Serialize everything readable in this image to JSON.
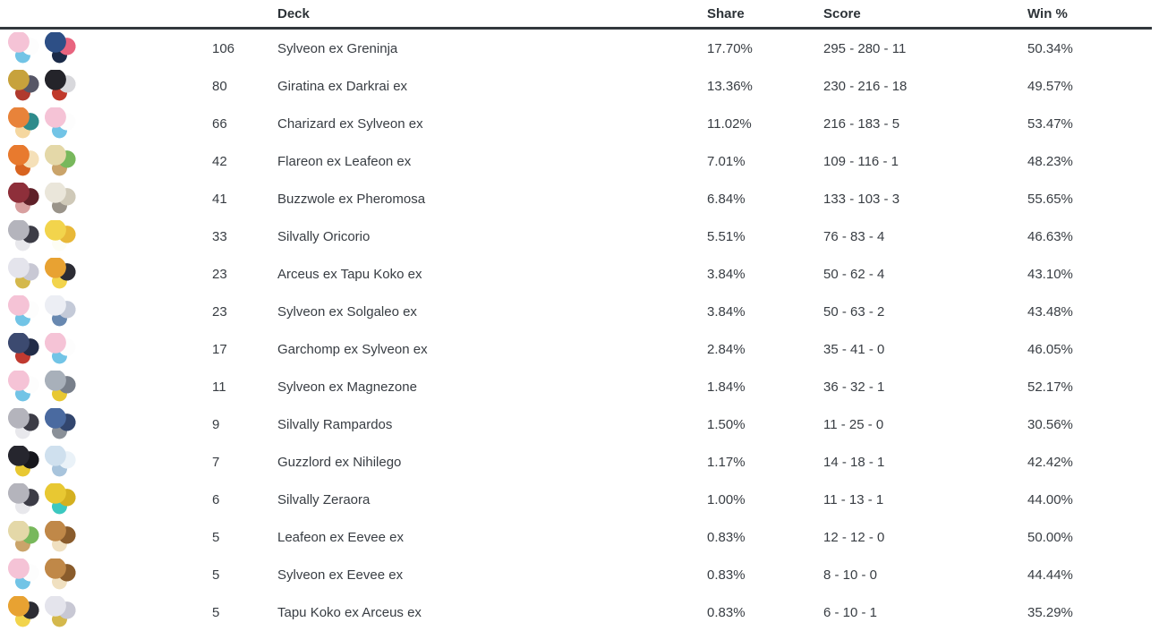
{
  "table": {
    "columns": {
      "deck": "Deck",
      "share": "Share",
      "score": "Score",
      "win": "Win %"
    },
    "rows": [
      {
        "count": "106",
        "deck": "Sylveon ex Greninja",
        "share": "17.70%",
        "score": "295 - 280 - 11",
        "win": "50.34%",
        "sprites": [
          {
            "name": "sylveon",
            "colors": [
              "#f5c3d6",
              "#fdfdfd",
              "#72c4e6"
            ]
          },
          {
            "name": "greninja",
            "colors": [
              "#2d4f86",
              "#e8647f",
              "#1a2a48"
            ]
          }
        ]
      },
      {
        "count": "80",
        "deck": "Giratina ex Darkrai ex",
        "share": "13.36%",
        "score": "230 - 216 - 18",
        "win": "49.57%",
        "sprites": [
          {
            "name": "giratina",
            "colors": [
              "#c7a23c",
              "#565666",
              "#b03a2e"
            ]
          },
          {
            "name": "darkrai",
            "colors": [
              "#24242a",
              "#d8d8dc",
              "#c0392b"
            ]
          }
        ]
      },
      {
        "count": "66",
        "deck": "Charizard ex Sylveon ex",
        "share": "11.02%",
        "score": "216 - 183 - 5",
        "win": "53.47%",
        "sprites": [
          {
            "name": "charizard",
            "colors": [
              "#e8833a",
              "#2e8b8b",
              "#f5d7a0"
            ]
          },
          {
            "name": "sylveon",
            "colors": [
              "#f5c3d6",
              "#fdfdfd",
              "#72c4e6"
            ]
          }
        ]
      },
      {
        "count": "42",
        "deck": "Flareon ex Leafeon ex",
        "share": "7.01%",
        "score": "109 - 116 - 1",
        "win": "48.23%",
        "sprites": [
          {
            "name": "flareon",
            "colors": [
              "#e87a2e",
              "#f5e0b8",
              "#d86420"
            ]
          },
          {
            "name": "leafeon",
            "colors": [
              "#e4d8a8",
              "#78b85c",
              "#caa46a"
            ]
          }
        ]
      },
      {
        "count": "41",
        "deck": "Buzzwole ex Pheromosa",
        "share": "6.84%",
        "score": "133 - 103 - 3",
        "win": "55.65%",
        "sprites": [
          {
            "name": "buzzwole",
            "colors": [
              "#8e2f3a",
              "#5f2028",
              "#d8a0a0"
            ]
          },
          {
            "name": "pheromosa",
            "colors": [
              "#eae6da",
              "#cfc9b8",
              "#9a948a"
            ]
          }
        ]
      },
      {
        "count": "33",
        "deck": "Silvally Oricorio",
        "share": "5.51%",
        "score": "76 - 83 - 4",
        "win": "46.63%",
        "sprites": [
          {
            "name": "silvally",
            "colors": [
              "#b4b4bc",
              "#3c3c46",
              "#e8e8ec"
            ]
          },
          {
            "name": "oricorio",
            "colors": [
              "#f2d44c",
              "#e8b838",
              "#fdfdf4"
            ]
          }
        ]
      },
      {
        "count": "23",
        "deck": "Arceus ex Tapu Koko ex",
        "share": "3.84%",
        "score": "50 - 62 - 4",
        "win": "43.10%",
        "sprites": [
          {
            "name": "arceus",
            "colors": [
              "#e4e4ec",
              "#c8c8d4",
              "#d4b84c"
            ]
          },
          {
            "name": "tapu-koko",
            "colors": [
              "#e8a232",
              "#2c2c34",
              "#f2d44c"
            ]
          }
        ]
      },
      {
        "count": "23",
        "deck": "Sylveon ex Solgaleo ex",
        "share": "3.84%",
        "score": "50 - 63 - 2",
        "win": "43.48%",
        "sprites": [
          {
            "name": "sylveon",
            "colors": [
              "#f5c3d6",
              "#fdfdfd",
              "#72c4e6"
            ]
          },
          {
            "name": "solgaleo",
            "colors": [
              "#eceef4",
              "#c4cad8",
              "#6888b0"
            ]
          }
        ]
      },
      {
        "count": "17",
        "deck": "Garchomp ex Sylveon ex",
        "share": "2.84%",
        "score": "35 - 41 - 0",
        "win": "46.05%",
        "sprites": [
          {
            "name": "garchomp",
            "colors": [
              "#3c4a70",
              "#222c48",
              "#c03a30"
            ]
          },
          {
            "name": "sylveon",
            "colors": [
              "#f5c3d6",
              "#fdfdfd",
              "#72c4e6"
            ]
          }
        ]
      },
      {
        "count": "11",
        "deck": "Sylveon ex Magnezone",
        "share": "1.84%",
        "score": "36 - 32 - 1",
        "win": "52.17%",
        "sprites": [
          {
            "name": "sylveon",
            "colors": [
              "#f5c3d6",
              "#fdfdfd",
              "#72c4e6"
            ]
          },
          {
            "name": "magnezone",
            "colors": [
              "#a8b0ba",
              "#787f8a",
              "#e8c832"
            ]
          }
        ]
      },
      {
        "count": "9",
        "deck": "Silvally Rampardos",
        "share": "1.50%",
        "score": "11 - 25 - 0",
        "win": "30.56%",
        "sprites": [
          {
            "name": "silvally",
            "colors": [
              "#b4b4bc",
              "#3c3c46",
              "#e8e8ec"
            ]
          },
          {
            "name": "rampardos",
            "colors": [
              "#4a6aa0",
              "#32466e",
              "#8a9098"
            ]
          }
        ]
      },
      {
        "count": "7",
        "deck": "Guzzlord ex Nihilego",
        "share": "1.17%",
        "score": "14 - 18 - 1",
        "win": "42.42%",
        "sprites": [
          {
            "name": "guzzlord",
            "colors": [
              "#26262e",
              "#16161c",
              "#e8c832"
            ]
          },
          {
            "name": "nihilego",
            "colors": [
              "#cfe0ee",
              "#eaf2f8",
              "#a8c4dc"
            ]
          }
        ]
      },
      {
        "count": "6",
        "deck": "Silvally Zeraora",
        "share": "1.00%",
        "score": "11 - 13 - 1",
        "win": "44.00%",
        "sprites": [
          {
            "name": "silvally",
            "colors": [
              "#b4b4bc",
              "#3c3c46",
              "#e8e8ec"
            ]
          },
          {
            "name": "zeraora",
            "colors": [
              "#e8c832",
              "#d4b020",
              "#3cc8c0"
            ]
          }
        ]
      },
      {
        "count": "5",
        "deck": "Leafeon ex Eevee ex",
        "share": "0.83%",
        "score": "12 - 12 - 0",
        "win": "50.00%",
        "sprites": [
          {
            "name": "leafeon",
            "colors": [
              "#e4d8a8",
              "#78b85c",
              "#caa46a"
            ]
          },
          {
            "name": "eevee",
            "colors": [
              "#c08848",
              "#8a5c2c",
              "#f0e0c0"
            ]
          }
        ]
      },
      {
        "count": "5",
        "deck": "Sylveon ex Eevee ex",
        "share": "0.83%",
        "score": "8 - 10 - 0",
        "win": "44.44%",
        "sprites": [
          {
            "name": "sylveon",
            "colors": [
              "#f5c3d6",
              "#fdfdfd",
              "#72c4e6"
            ]
          },
          {
            "name": "eevee",
            "colors": [
              "#c08848",
              "#8a5c2c",
              "#f0e0c0"
            ]
          }
        ]
      },
      {
        "count": "5",
        "deck": "Tapu Koko ex Arceus ex",
        "share": "0.83%",
        "score": "6 - 10 - 1",
        "win": "35.29%",
        "sprites": [
          {
            "name": "tapu-koko",
            "colors": [
              "#e8a232",
              "#2c2c34",
              "#f2d44c"
            ]
          },
          {
            "name": "arceus",
            "colors": [
              "#e4e4ec",
              "#c8c8d4",
              "#d4b84c"
            ]
          }
        ]
      }
    ]
  },
  "colors": {
    "text": "#383d43",
    "header_text": "#2c3237",
    "rule": "#32383d",
    "background": "#ffffff"
  }
}
